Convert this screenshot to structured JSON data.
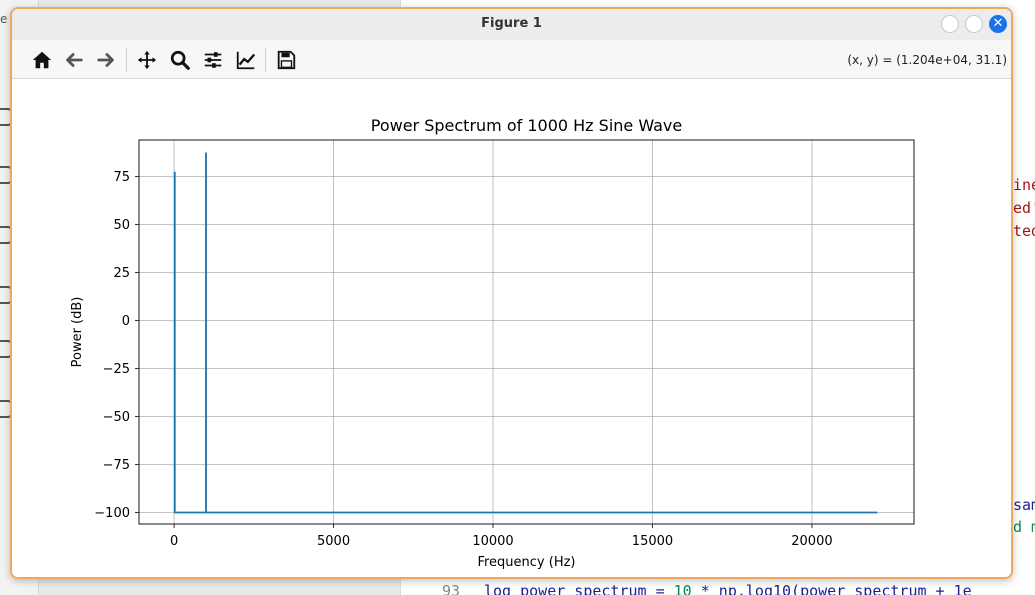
{
  "window": {
    "title": "Figure 1",
    "close_symbol": "✕"
  },
  "toolbar": {
    "buttons": [
      {
        "name": "home-icon"
      },
      {
        "name": "back-arrow-icon"
      },
      {
        "name": "forward-arrow-icon"
      },
      {
        "name": "pan-icon"
      },
      {
        "name": "zoom-icon"
      },
      {
        "name": "configure-subplots-icon"
      },
      {
        "name": "edit-axis-icon"
      },
      {
        "name": "save-icon"
      }
    ],
    "coords": "(x, y) = (1.204e+04, 31.1)"
  },
  "background": {
    "top_left_char": "e",
    "right_fragments": [
      {
        "text": "ine",
        "color": "#a31515"
      },
      {
        "text": "ed'",
        "color": "#a31515"
      },
      {
        "text": "ted",
        "color": "#a31515"
      },
      {
        "text": "sam",
        "color": "#1b1f8f"
      },
      {
        "text": "d m",
        "color": "#098658"
      }
    ],
    "code_line_number": "93",
    "code_text_a": "log_power_spectrum = ",
    "code_text_num": "10",
    "code_text_b": " * np.log10(power_spectrum + 1e"
  },
  "chart_data": {
    "type": "line",
    "title": "Power Spectrum of 1000 Hz Sine Wave",
    "xlabel": "Frequency (Hz)",
    "ylabel": "Power (dB)",
    "xlim": [
      -1100,
      23200
    ],
    "ylim": [
      -106,
      94
    ],
    "xticks": [
      0,
      5000,
      10000,
      15000,
      20000
    ],
    "xtick_labels": [
      "0",
      "5000",
      "10000",
      "15000",
      "20000"
    ],
    "yticks": [
      75,
      50,
      25,
      0,
      -25,
      -50,
      -75,
      -100
    ],
    "ytick_labels": [
      "75",
      "50",
      "25",
      "0",
      "−25",
      "−50",
      "−75",
      "−100"
    ],
    "grid": true,
    "color": "#1f77b4",
    "x": [
      0,
      20,
      20,
      22,
      22,
      1000,
      1000,
      1002,
      1002,
      22050
    ],
    "y": [
      -100,
      -100,
      77,
      77,
      -100,
      -100,
      87,
      87,
      -100,
      -100
    ]
  }
}
